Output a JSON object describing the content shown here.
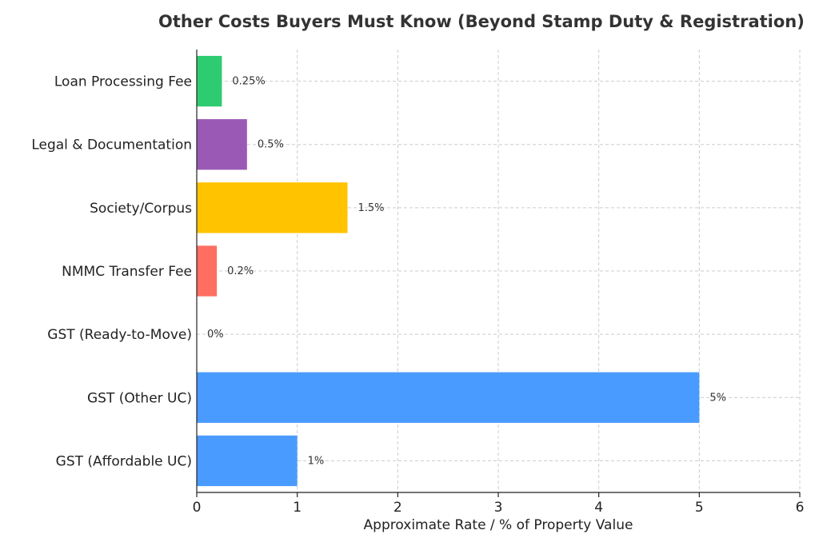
{
  "chart_data": {
    "type": "bar",
    "orientation": "horizontal",
    "title": "Other Costs Buyers Must Know (Beyond Stamp Duty & Registration)",
    "xlabel": "Approximate Rate / % of Property Value",
    "ylabel": "",
    "xlim": [
      0,
      6
    ],
    "x_ticks": [
      "0",
      "1",
      "2",
      "3",
      "4",
      "5",
      "6"
    ],
    "grid": true,
    "categories": [
      "Loan Processing Fee",
      "Legal & Documentation",
      "Society/Corpus",
      "NMMC Transfer Fee",
      "GST (Ready-to-Move)",
      "GST (Other UC)",
      "GST (Affordable UC)"
    ],
    "values": [
      0.25,
      0.5,
      1.5,
      0.2,
      0,
      5,
      1
    ],
    "data_labels": [
      "0.25%",
      "0.5%",
      "1.5%",
      "0.2%",
      "0%",
      "5%",
      "1%"
    ],
    "colors": [
      "#2ecc71",
      "#9b59b6",
      "#ffc300",
      "#ff6f61",
      "#4a9bff",
      "#4a9bff",
      "#4a9bff"
    ]
  }
}
